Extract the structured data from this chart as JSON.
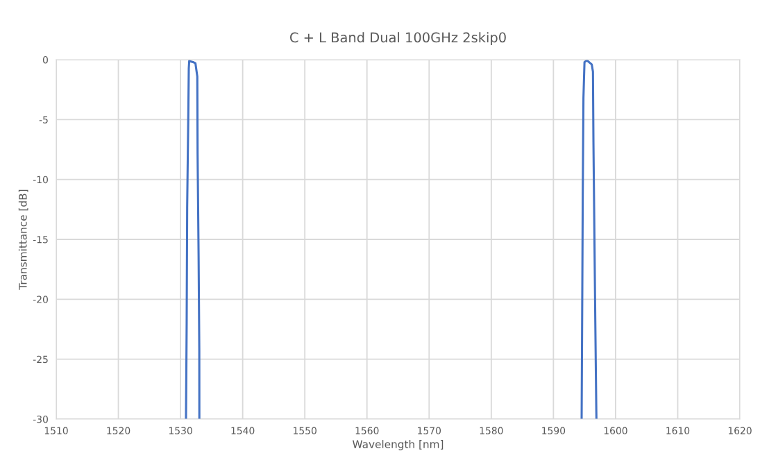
{
  "chart_data": {
    "type": "line",
    "title": "C + L Band Dual 100GHz 2skip0",
    "xlabel": "Wavelength [nm]",
    "ylabel": "Transmittance [dB]",
    "x": [
      1530.88,
      1530.99,
      1531.07,
      1531.26,
      1531.33,
      1531.4,
      1531.6,
      1532.0,
      1532.4,
      1532.7,
      1532.75,
      1532.91,
      1533.02,
      1533.03,
      1560,
      1594.54,
      1594.65,
      1594.72,
      1594.83,
      1595.0,
      1595.4,
      1596.17,
      1596.36,
      1596.44,
      1596.6,
      1596.74,
      1596.9,
      1596.92
    ],
    "series": [
      {
        "color": "#4472c4",
        "values": [
          -30,
          -22,
          -12.3,
          -4.3,
          -0.75,
          -0.1,
          -0.15,
          -0.2,
          -0.3,
          -1.4,
          -7.9,
          -16.5,
          -24.3,
          -30,
          null,
          -30,
          -18.9,
          -11.3,
          -3.2,
          -0.2,
          -0.06,
          -0.4,
          -1.0,
          -6.9,
          -14.9,
          -21.9,
          -29.3,
          -30
        ]
      }
    ],
    "xlim": [
      1510,
      1620
    ],
    "xticks": [
      1510,
      1520,
      1530,
      1540,
      1550,
      1560,
      1570,
      1580,
      1590,
      1600,
      1610,
      1620
    ],
    "ylim": [
      -30,
      0
    ],
    "yticks": [
      -30,
      -25,
      -20,
      -15,
      -10,
      -5,
      0
    ],
    "grid": true,
    "marker": "none",
    "line_style": "solid",
    "legend": false
  }
}
